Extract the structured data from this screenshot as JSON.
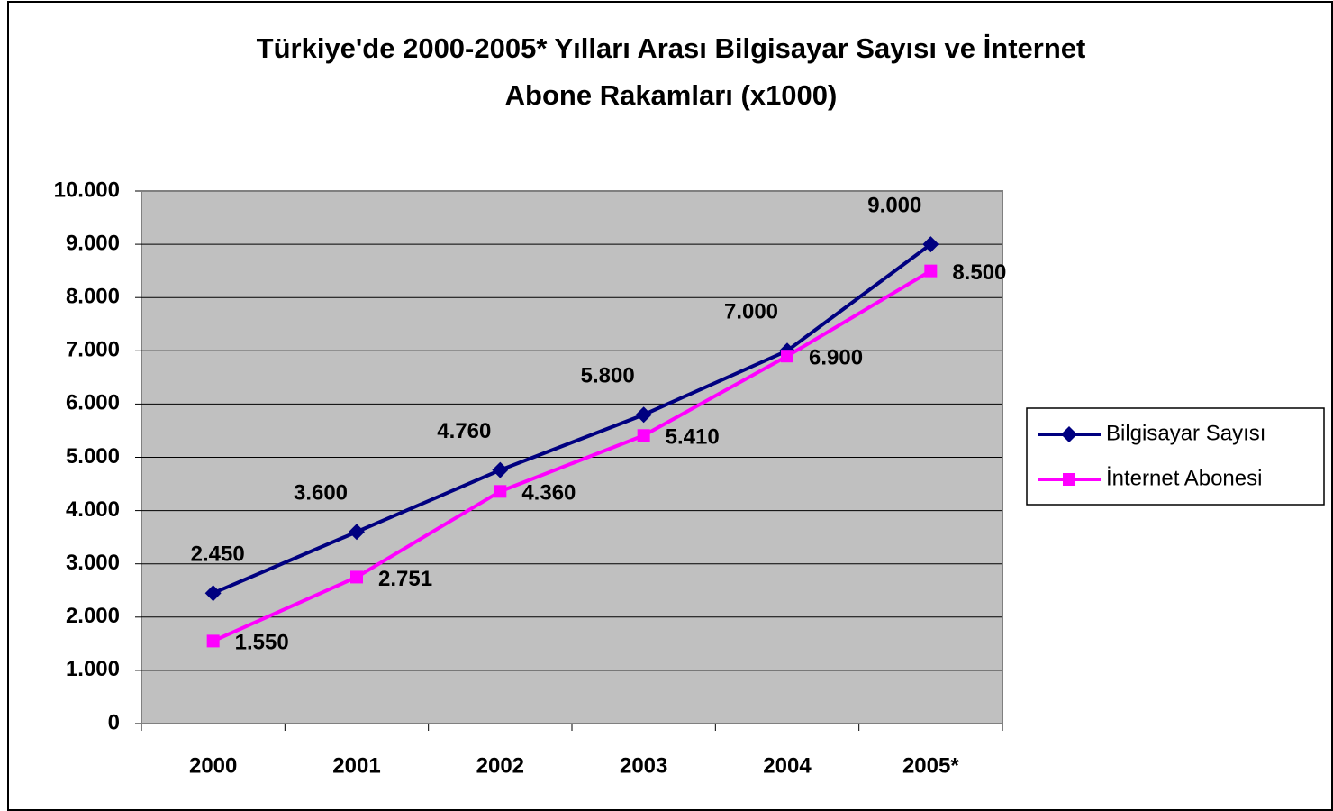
{
  "chart_data": {
    "type": "line",
    "title": [
      "Türkiye'de 2000-2005* Yılları Arası Bilgisayar Sayısı ve İnternet",
      "Abone Rakamları (x1000)"
    ],
    "categories": [
      "2000",
      "2001",
      "2002",
      "2003",
      "2004",
      "2005*"
    ],
    "series": [
      {
        "name": "Bilgisayar Sayısı",
        "color": "#000080",
        "marker": "diamond",
        "values": [
          2450,
          3600,
          4760,
          5800,
          7000,
          9000
        ],
        "value_labels": [
          "2.450",
          "3.600",
          "4.760",
          "5.800",
          "7.000",
          "9.000"
        ]
      },
      {
        "name": "İnternet Abonesi",
        "color": "#ff00ff",
        "marker": "square",
        "values": [
          1550,
          2751,
          4360,
          5410,
          6900,
          8500
        ],
        "value_labels": [
          "1.550",
          "2.751",
          "4.360",
          "5.410",
          "6.900",
          "8.500"
        ]
      }
    ],
    "ylim": [
      0,
      10000
    ],
    "yticks": [
      0,
      {
        "value": 1000,
        "label": "1.000"
      },
      {
        "value": 2000,
        "label": "2.000"
      },
      {
        "value": 3000,
        "label": "3.000"
      },
      {
        "value": 4000,
        "label": "4.000"
      },
      {
        "value": 5000,
        "label": "5.000"
      },
      {
        "value": 6000,
        "label": "6.000"
      },
      {
        "value": 7000,
        "label": "7.000"
      },
      {
        "value": 8000,
        "label": "8.000"
      },
      {
        "value": 9000,
        "label": "9.000"
      },
      {
        "value": 10000,
        "label": "10.000"
      }
    ],
    "grid": true,
    "legend": "right"
  }
}
